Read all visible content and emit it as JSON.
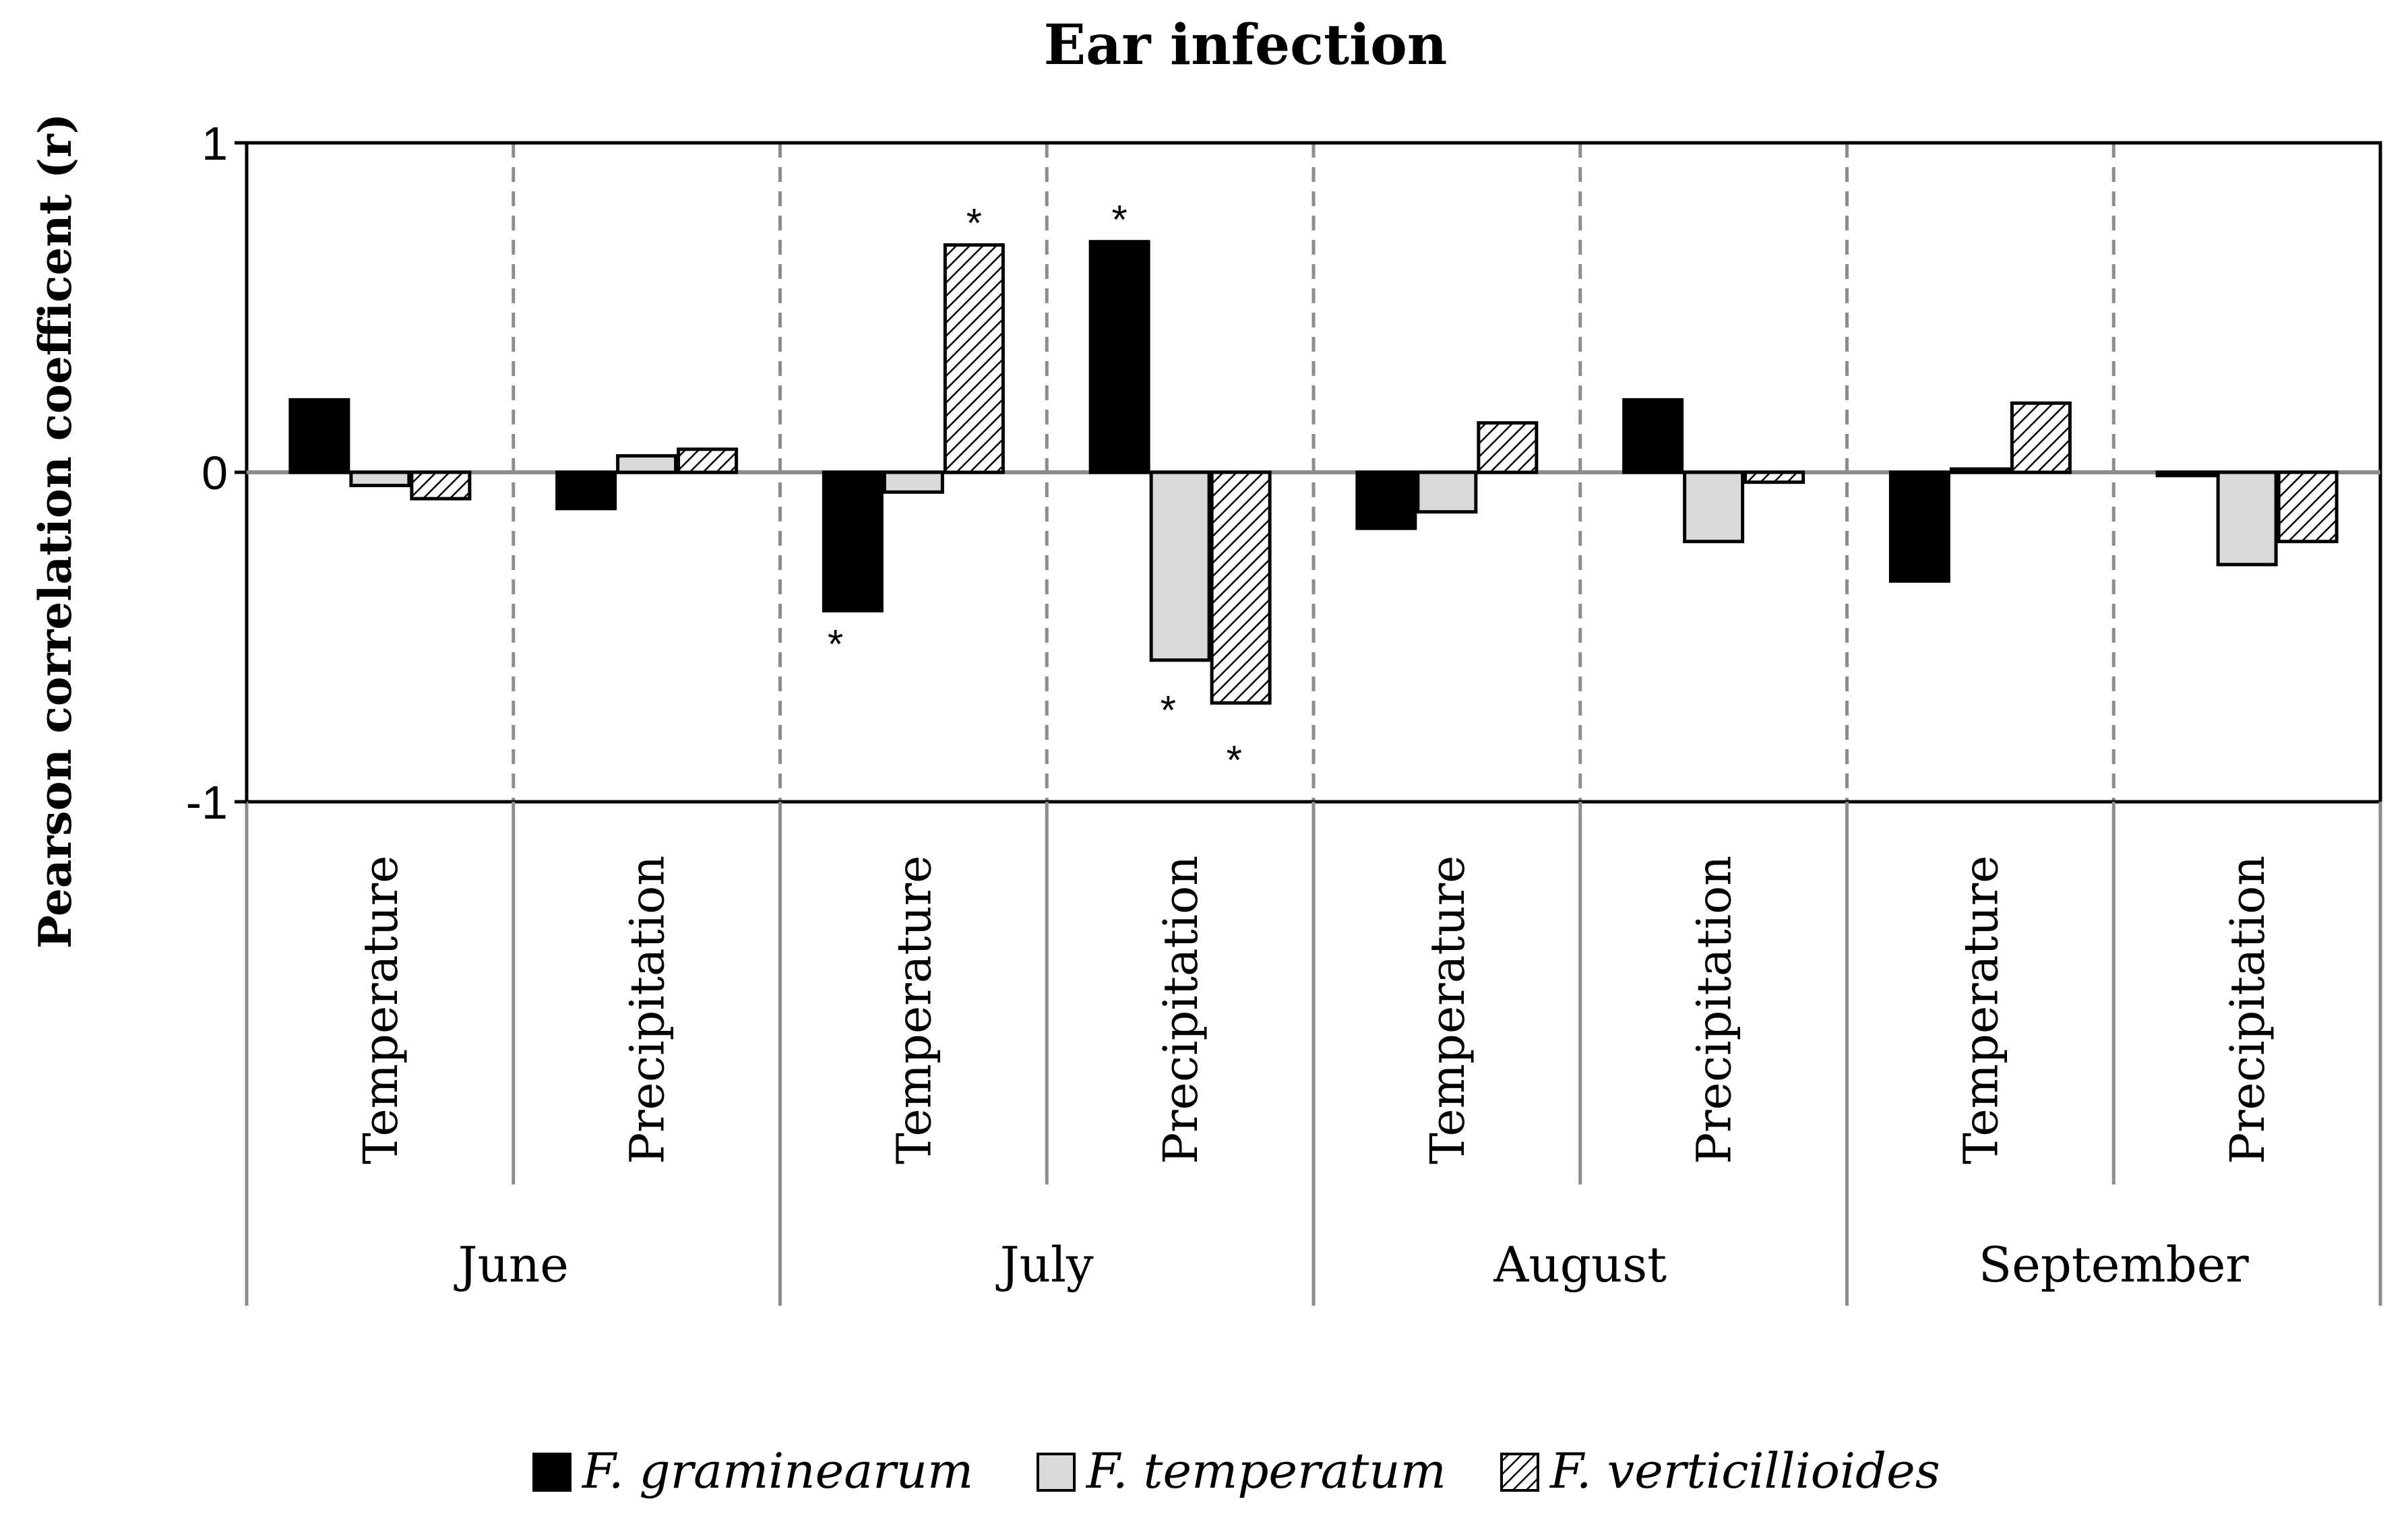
{
  "chart_data": {
    "type": "bar",
    "title": "Ear infection",
    "ylabel": "Pearson correlation coefficent (r)",
    "xlabel": "",
    "ylim": [
      -1,
      1
    ],
    "yticks": [
      {
        "value": 1,
        "label": "1"
      },
      {
        "value": 0,
        "label": "0"
      },
      {
        "value": -1,
        "label": "-1"
      }
    ],
    "groups": [
      {
        "name": "June",
        "categories": [
          "Temperature",
          "Precipitation"
        ]
      },
      {
        "name": "July",
        "categories": [
          "Temperature",
          "Precipitation"
        ]
      },
      {
        "name": "August",
        "categories": [
          "Temperature",
          "Precipitation"
        ]
      },
      {
        "name": "September",
        "categories": [
          "Temperature",
          "Precipitation"
        ]
      }
    ],
    "categories": [
      "June Temperature",
      "June Precipitation",
      "July Temperature",
      "July Precipitation",
      "August Temperature",
      "August Precipitation",
      "September Temperature",
      "September Precipitation"
    ],
    "series": [
      {
        "name": "F. graminearum",
        "fill": "#000000",
        "pattern": "solid",
        "values": [
          0.22,
          -0.11,
          -0.42,
          0.7,
          -0.17,
          0.22,
          -0.33,
          -0.01
        ],
        "significant": [
          false,
          false,
          true,
          true,
          false,
          false,
          false,
          false
        ]
      },
      {
        "name": "F. temperatum",
        "fill": "#d9d9d9",
        "pattern": "solid",
        "values": [
          -0.04,
          0.05,
          -0.06,
          -0.57,
          -0.12,
          -0.21,
          0.01,
          -0.28
        ],
        "significant": [
          false,
          false,
          false,
          true,
          false,
          false,
          false,
          false
        ]
      },
      {
        "name": "F. verticillioides",
        "fill": "#ffffff",
        "pattern": "hatch",
        "values": [
          -0.08,
          0.07,
          0.69,
          -0.7,
          0.15,
          -0.03,
          0.21,
          -0.21
        ],
        "significant": [
          false,
          false,
          true,
          true,
          false,
          false,
          false,
          false
        ]
      }
    ],
    "significance_marker": "*",
    "legend_position": "bottom",
    "grid": false
  }
}
